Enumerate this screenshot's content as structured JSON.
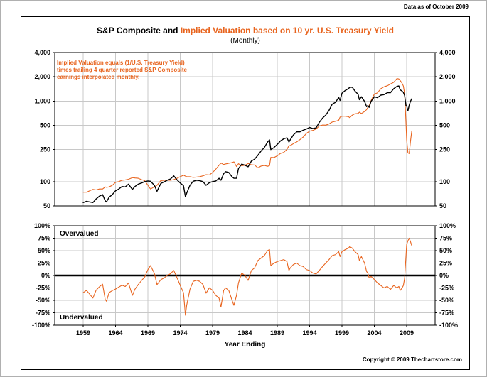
{
  "page": {
    "data_as_of": "Data as of October 2009",
    "copyright": "Copyright © 2009 Thechartstore.com"
  },
  "header": {
    "title_black": "S&P Composite and ",
    "title_orange": "Implied Valuation based on 10 yr. U.S. Treasury Yield",
    "subtitle": "(Monthly)"
  },
  "annotation": {
    "line1": "Implied Valuation equals (1/U.S. Treasury Yield)",
    "line2": "times trailing 4 quarter reported S&P Composite",
    "line3": "earnings interpolated monthly."
  },
  "labels": {
    "overvalued": "Overvalued",
    "undervalued": "Undervalued",
    "x_axis": "Year Ending"
  },
  "colors": {
    "orange": "#E8641E",
    "black": "#000000",
    "grid": "#c8c8c8"
  },
  "chart_data": {
    "type": "line",
    "title": "S&P Composite and Implied Valuation based on 10 yr. U.S. Treasury Yield (Monthly)",
    "xlabel": "Year Ending",
    "x_range": [
      1954.6,
      2013.4
    ],
    "x_ticks": [
      1959,
      1964,
      1969,
      1974,
      1979,
      1984,
      1989,
      1994,
      1999,
      2004,
      2009
    ],
    "grid": true,
    "legend_position": "none",
    "panels": [
      {
        "name": "price",
        "scale": "log",
        "y_range": [
          50,
          4000
        ],
        "y_ticks": [
          4000,
          2000,
          1000,
          500,
          250,
          100,
          50
        ],
        "y_tick_labels": [
          "4,000",
          "2,000",
          "1,000",
          "500",
          "250",
          "100",
          "50"
        ]
      },
      {
        "name": "valuation",
        "scale": "linear",
        "y_range": [
          -100,
          100
        ],
        "y_ticks": [
          100,
          75,
          50,
          25,
          0,
          -25,
          -50,
          -75,
          -100
        ],
        "y_tick_labels": [
          "100%",
          "75%",
          "50%",
          "25%",
          "0%",
          "-25%",
          "-50%",
          "-75%",
          "-100%"
        ]
      }
    ],
    "series_meta": [
      {
        "name": "S&P Composite",
        "panel": "price",
        "color": "#000000",
        "column": "sp"
      },
      {
        "name": "Implied Valuation",
        "panel": "price",
        "color": "#E8641E",
        "column": "implied"
      },
      {
        "name": "Valuation spread (derived: (SP - Implied) / SP * 100%)",
        "panel": "valuation",
        "color": "#E8641E",
        "column": "derived"
      }
    ],
    "points": [
      [
        1959.0,
        55,
        74
      ],
      [
        1959.5,
        57,
        74
      ],
      [
        1960.0,
        56,
        77
      ],
      [
        1960.5,
        55,
        80
      ],
      [
        1961.0,
        61,
        79
      ],
      [
        1961.5,
        66,
        81
      ],
      [
        1962.0,
        69,
        81
      ],
      [
        1962.4,
        58,
        86
      ],
      [
        1962.6,
        56,
        85
      ],
      [
        1963.0,
        64,
        86
      ],
      [
        1963.5,
        69,
        90
      ],
      [
        1964.0,
        77,
        98
      ],
      [
        1964.5,
        81,
        100
      ],
      [
        1965.0,
        87,
        104
      ],
      [
        1965.5,
        86,
        105
      ],
      [
        1966.0,
        93,
        107
      ],
      [
        1966.6,
        80,
        112
      ],
      [
        1967.0,
        87,
        111
      ],
      [
        1967.5,
        93,
        110
      ],
      [
        1968.0,
        96,
        106
      ],
      [
        1968.5,
        100,
        103
      ],
      [
        1969.0,
        102,
        90
      ],
      [
        1969.4,
        101,
        81
      ],
      [
        1970.0,
        90,
        86
      ],
      [
        1970.4,
        76,
        90
      ],
      [
        1971.0,
        95,
        103
      ],
      [
        1971.5,
        99,
        104
      ],
      [
        1972.0,
        104,
        104
      ],
      [
        1972.5,
        108,
        104
      ],
      [
        1973.0,
        118,
        106
      ],
      [
        1973.5,
        105,
        110
      ],
      [
        1974.0,
        96,
        115
      ],
      [
        1974.5,
        89,
        120
      ],
      [
        1974.8,
        65,
        117
      ],
      [
        1975.0,
        72,
        115
      ],
      [
        1975.5,
        90,
        115
      ],
      [
        1976.0,
        101,
        113
      ],
      [
        1976.5,
        104,
        114
      ],
      [
        1977.0,
        103,
        115
      ],
      [
        1977.5,
        100,
        118
      ],
      [
        1978.0,
        90,
        122
      ],
      [
        1978.5,
        97,
        121
      ],
      [
        1979.0,
        100,
        130
      ],
      [
        1979.5,
        102,
        143
      ],
      [
        1980.0,
        110,
        160
      ],
      [
        1980.3,
        104,
        170
      ],
      [
        1980.7,
        125,
        163
      ],
      [
        1981.0,
        133,
        166
      ],
      [
        1981.5,
        130,
        169
      ],
      [
        1982.0,
        115,
        172
      ],
      [
        1982.3,
        110,
        176
      ],
      [
        1982.7,
        110,
        154
      ],
      [
        1983.0,
        145,
        167
      ],
      [
        1983.5,
        165,
        157
      ],
      [
        1984.0,
        160,
        160
      ],
      [
        1984.5,
        153,
        168
      ],
      [
        1985.0,
        180,
        162
      ],
      [
        1985.5,
        190,
        161
      ],
      [
        1986.0,
        212,
        148
      ],
      [
        1986.5,
        240,
        156
      ],
      [
        1987.0,
        265,
        159
      ],
      [
        1987.5,
        310,
        155
      ],
      [
        1987.8,
        330,
        158
      ],
      [
        1988.0,
        250,
        200
      ],
      [
        1988.5,
        265,
        199
      ],
      [
        1989.0,
        290,
        209
      ],
      [
        1989.5,
        320,
        224
      ],
      [
        1990.0,
        340,
        231
      ],
      [
        1990.5,
        350,
        252
      ],
      [
        1990.8,
        310,
        279
      ],
      [
        1991.0,
        330,
        280
      ],
      [
        1991.5,
        380,
        296
      ],
      [
        1992.0,
        415,
        311
      ],
      [
        1992.5,
        415,
        332
      ],
      [
        1993.0,
        435,
        357
      ],
      [
        1993.5,
        450,
        396
      ],
      [
        1994.0,
        470,
        423
      ],
      [
        1994.5,
        455,
        432
      ],
      [
        1995.0,
        465,
        451
      ],
      [
        1995.5,
        545,
        490
      ],
      [
        1996.0,
        615,
        504
      ],
      [
        1996.5,
        670,
        502
      ],
      [
        1997.0,
        765,
        520
      ],
      [
        1997.5,
        915,
        549
      ],
      [
        1998.0,
        965,
        560
      ],
      [
        1998.5,
        1110,
        577
      ],
      [
        1998.7,
        1020,
        632
      ],
      [
        1999.0,
        1250,
        650
      ],
      [
        1999.5,
        1350,
        648
      ],
      [
        2000.0,
        1425,
        641
      ],
      [
        2000.2,
        1480,
        622
      ],
      [
        2000.6,
        1485,
        668
      ],
      [
        2001.0,
        1335,
        694
      ],
      [
        2001.5,
        1210,
        702
      ],
      [
        2001.7,
        1040,
        728
      ],
      [
        2002.0,
        1130,
        700
      ],
      [
        2002.5,
        990,
        742
      ],
      [
        2002.8,
        850,
        782
      ],
      [
        2003.0,
        880,
        836
      ],
      [
        2003.2,
        835,
        877
      ],
      [
        2003.5,
        990,
        1010
      ],
      [
        2004.0,
        1130,
        1220
      ],
      [
        2004.5,
        1100,
        1265
      ],
      [
        2005.0,
        1185,
        1422
      ],
      [
        2005.5,
        1200,
        1500
      ],
      [
        2006.0,
        1270,
        1549
      ],
      [
        2006.5,
        1270,
        1626
      ],
      [
        2007.0,
        1425,
        1710
      ],
      [
        2007.5,
        1520,
        1900
      ],
      [
        2007.8,
        1540,
        1879
      ],
      [
        2008.0,
        1380,
        1794
      ],
      [
        2008.3,
        1330,
        1663
      ],
      [
        2008.5,
        1280,
        1536
      ],
      [
        2008.7,
        1165,
        1223
      ],
      [
        2008.9,
        880,
        528
      ],
      [
        2009.0,
        870,
        331
      ],
      [
        2009.2,
        757,
        227
      ],
      [
        2009.4,
        890,
        223
      ],
      [
        2009.6,
        995,
        318
      ],
      [
        2009.8,
        1067,
        427
      ]
    ]
  }
}
